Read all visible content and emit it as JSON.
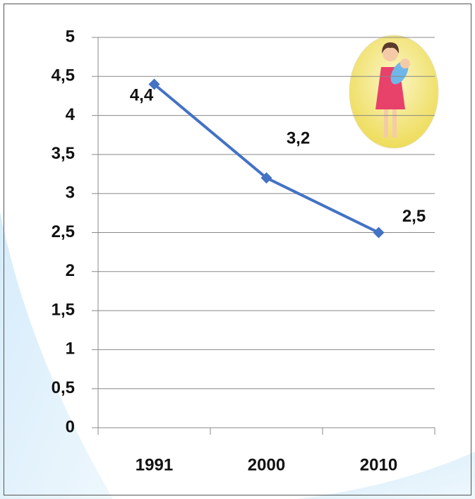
{
  "chart_data": {
    "type": "line",
    "categories": [
      "1991",
      "2000",
      "2010"
    ],
    "series": [
      {
        "name": null,
        "color": "#4472c4",
        "values": [
          4.4,
          3.2,
          2.5
        ],
        "value_labels": [
          "4,4",
          "3,2",
          "2,5"
        ]
      }
    ],
    "ylim": [
      0,
      5
    ],
    "yticks": [
      0,
      {
        "value": 0.5,
        "label": "0,5"
      },
      1,
      {
        "value": 1.5,
        "label": "1,5"
      },
      2,
      {
        "value": 2.5,
        "label": "2,5"
      },
      3,
      {
        "value": 3.5,
        "label": "3,5"
      },
      4,
      {
        "value": 4.5,
        "label": "4,5"
      },
      5
    ],
    "grid": true
  }
}
